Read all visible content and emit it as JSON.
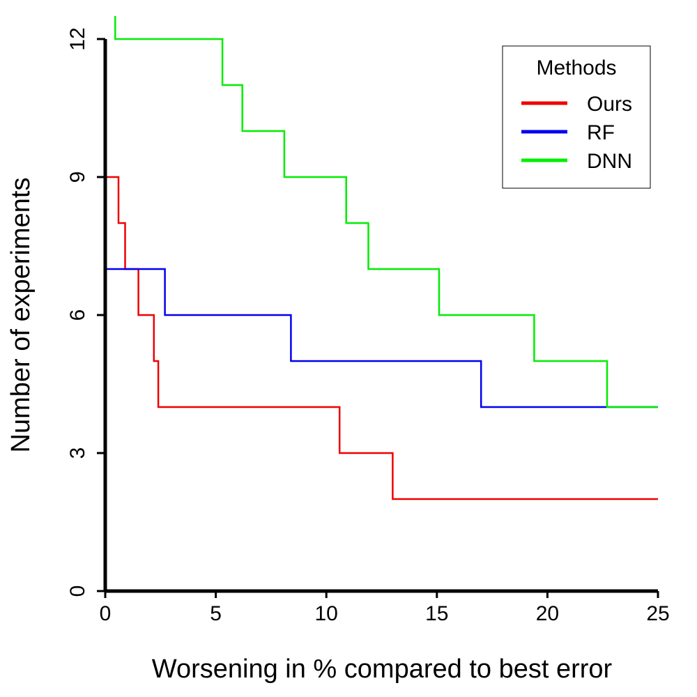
{
  "chart_data": {
    "type": "line",
    "step": true,
    "xlabel": "Worsening in % compared to best error",
    "ylabel": "Number of experiments",
    "xlim": [
      0,
      25
    ],
    "ylim": [
      0,
      12
    ],
    "x_ticks": [
      0,
      5,
      10,
      15,
      20,
      25
    ],
    "y_ticks": [
      0,
      3,
      6,
      9,
      12
    ],
    "grid": false,
    "legend": {
      "title": "Methods",
      "position": "top-right"
    },
    "series": [
      {
        "name": "Ours",
        "color": "#ee0000",
        "points": [
          [
            0,
            9
          ],
          [
            0.6,
            9
          ],
          [
            0.6,
            8
          ],
          [
            0.9,
            8
          ],
          [
            0.9,
            7
          ],
          [
            1.5,
            7
          ],
          [
            1.5,
            6
          ],
          [
            2.2,
            6
          ],
          [
            2.2,
            5
          ],
          [
            2.4,
            5
          ],
          [
            2.4,
            4
          ],
          [
            10.6,
            4
          ],
          [
            10.6,
            3
          ],
          [
            13.0,
            3
          ],
          [
            13.0,
            2
          ],
          [
            25,
            2
          ]
        ]
      },
      {
        "name": "RF",
        "color": "#0000ee",
        "points": [
          [
            0,
            7
          ],
          [
            2.7,
            7
          ],
          [
            2.7,
            6
          ],
          [
            8.4,
            6
          ],
          [
            8.4,
            5
          ],
          [
            17.0,
            5
          ],
          [
            17.0,
            4
          ],
          [
            25,
            4
          ]
        ]
      },
      {
        "name": "DNN",
        "color": "#00ee00",
        "points": [
          [
            0.45,
            12.5
          ],
          [
            0.45,
            12
          ],
          [
            5.3,
            12
          ],
          [
            5.3,
            11
          ],
          [
            6.2,
            11
          ],
          [
            6.2,
            10
          ],
          [
            8.1,
            10
          ],
          [
            8.1,
            9
          ],
          [
            10.9,
            9
          ],
          [
            10.9,
            8
          ],
          [
            11.9,
            8
          ],
          [
            11.9,
            7
          ],
          [
            15.1,
            7
          ],
          [
            15.1,
            6
          ],
          [
            19.4,
            6
          ],
          [
            19.4,
            5
          ],
          [
            22.7,
            5
          ],
          [
            22.7,
            4
          ],
          [
            25,
            4
          ]
        ]
      }
    ]
  }
}
